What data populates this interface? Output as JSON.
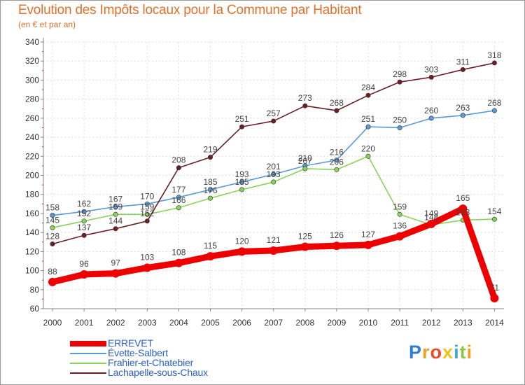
{
  "header": {
    "title": "Evolution des Impôts locaux pour la Commune par Habitant",
    "subtitle": "(en € et par an)"
  },
  "brand": {
    "name": "Proxiti",
    "letters": [
      "P",
      "r",
      "o",
      "x",
      "i",
      "t",
      "i"
    ]
  },
  "chart_data": {
    "type": "line",
    "title": "Evolution des Impôts locaux pour la Commune par Habitant",
    "subtitle": "(en € et par an)",
    "xlabel": "",
    "ylabel": "",
    "ylim": [
      60,
      340
    ],
    "yticks": [
      60,
      80,
      100,
      120,
      140,
      160,
      180,
      200,
      220,
      240,
      260,
      280,
      300,
      320,
      340
    ],
    "categories": [
      "2000",
      "2001",
      "2002",
      "2003",
      "2004",
      "2005",
      "2006",
      "2007",
      "2008",
      "2009",
      "2010",
      "2011",
      "2012",
      "2013",
      "2014"
    ],
    "grid": true,
    "legend_position": "bottom-left",
    "series": [
      {
        "name": "ERREVET",
        "color": "#ee0000",
        "values": [
          88,
          96,
          97,
          103,
          108,
          115,
          120,
          121,
          125,
          126,
          127,
          136,
          149,
          165,
          71
        ]
      },
      {
        "name": "Évette-Salbert",
        "color": "#5a9bd5",
        "values": [
          158,
          162,
          167,
          170,
          177,
          185,
          193,
          201,
          210,
          216,
          251,
          250,
          260,
          263,
          268
        ]
      },
      {
        "name": "Frahier-et-Chatebier",
        "color": "#8ad35a",
        "values": [
          145,
          152,
          159,
          159,
          166,
          176,
          185,
          193,
          207,
          206,
          220,
          159,
          148,
          153,
          154
        ]
      },
      {
        "name": "Lachapelle-sous-Chaux",
        "color": "#6b1f24",
        "values": [
          128,
          137,
          144,
          152,
          208,
          219,
          251,
          257,
          273,
          268,
          284,
          298,
          303,
          311,
          318
        ]
      }
    ]
  }
}
